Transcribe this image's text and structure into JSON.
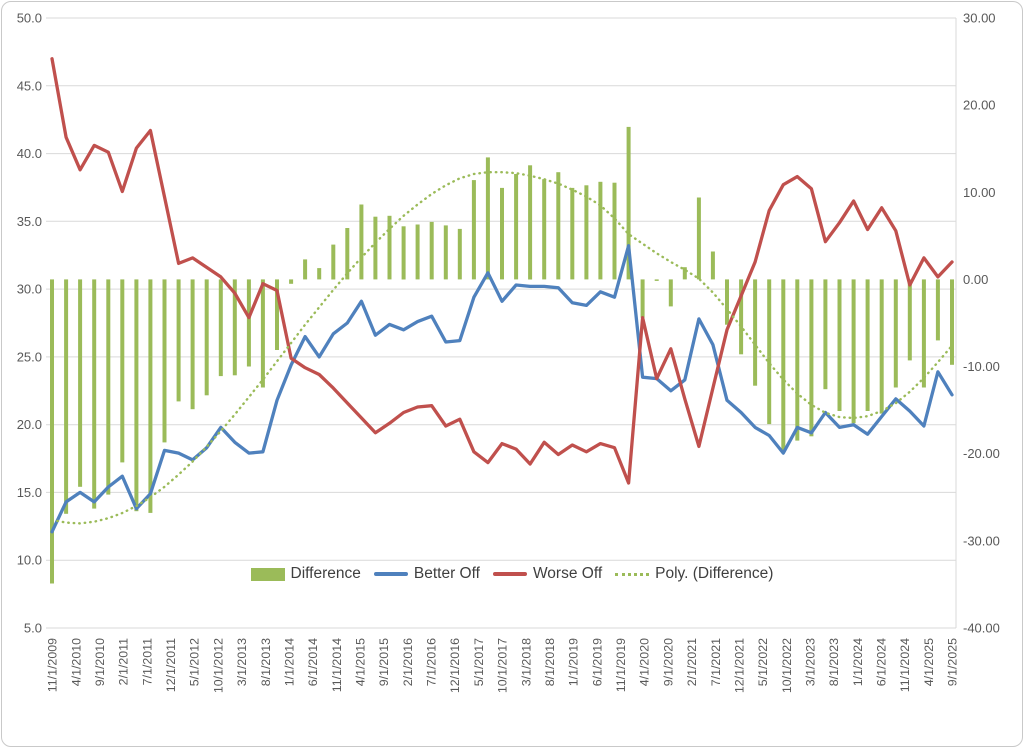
{
  "chart_data": {
    "type": "combo",
    "title": "",
    "xlabel": "",
    "ylabel_left": "",
    "ylabel_right": "",
    "grid": true,
    "x_tick_labels": [
      "11/1/2009",
      "4/1/2010",
      "9/1/2010",
      "2/1/2011",
      "7/1/2011",
      "12/1/2011",
      "5/1/2012",
      "10/1/2012",
      "3/1/2013",
      "8/1/2013",
      "1/1/2014",
      "6/1/2014",
      "11/1/2014",
      "4/1/2015",
      "9/1/2015",
      "2/1/2016",
      "7/1/2016",
      "12/1/2016",
      "5/1/2017",
      "10/1/2017",
      "3/1/2018",
      "8/1/2018",
      "1/1/2019",
      "6/1/2019",
      "11/1/2019",
      "4/1/2020",
      "9/1/2020",
      "2/1/2021",
      "7/1/2021",
      "12/1/2021",
      "5/1/2022",
      "10/1/2022",
      "3/1/2023",
      "8/1/2023",
      "1/1/2024",
      "6/1/2024",
      "11/1/2024",
      "4/1/2025",
      "9/1/2025"
    ],
    "left_axis": {
      "min": 5,
      "max": 50,
      "tick_labels": [
        "50.0",
        "45.0",
        "40.0",
        "35.0",
        "30.0",
        "25.0",
        "20.0",
        "15.0",
        "10.0",
        "5.0"
      ],
      "tick_values": [
        50,
        45,
        40,
        35,
        30,
        25,
        20,
        15,
        10,
        5
      ]
    },
    "right_axis": {
      "min": -40,
      "max": 30,
      "tick_labels": [
        "30.00",
        "20.00",
        "10.00",
        "0.00",
        "-10.00",
        "-20.00",
        "-30.00",
        "-40.00"
      ],
      "tick_values": [
        30,
        20,
        10,
        0,
        -10,
        -20,
        -30,
        -40
      ]
    },
    "legend": {
      "position": "bottom",
      "entries": [
        "Difference",
        "Better Off",
        "Worse Off",
        "Poly. (Difference)"
      ]
    },
    "series": [
      {
        "name": "Difference",
        "type": "bar",
        "axis": "right",
        "color": "#9BBB59",
        "values": [
          -34.9,
          -26.9,
          -23.8,
          -26.3,
          -24.7,
          -21.0,
          -26.6,
          -26.8,
          -18.7,
          -14.0,
          -14.9,
          -13.3,
          -11.1,
          -11.0,
          -10.0,
          -12.4,
          -8.1,
          -0.5,
          2.3,
          1.3,
          4.0,
          5.9,
          8.6,
          7.2,
          7.3,
          6.1,
          6.3,
          6.6,
          6.2,
          5.8,
          11.4,
          14.0,
          10.5,
          12.1,
          13.1,
          11.5,
          12.3,
          10.5,
          10.8,
          11.2,
          11.1,
          17.5,
          -4.4,
          0.0,
          -3.1,
          1.4,
          9.4,
          3.2,
          -5.2,
          -8.6,
          -12.2,
          -16.6,
          -19.8,
          -18.5,
          -18.0,
          -12.6,
          -15.1,
          -16.5,
          -15.1,
          -15.4,
          -12.4,
          -9.3,
          -12.4,
          -7.0,
          -9.8
        ]
      },
      {
        "name": "Better Off",
        "type": "line",
        "axis": "left",
        "color": "#4F81BD",
        "values": [
          12.1,
          14.3,
          15.0,
          14.3,
          15.4,
          16.2,
          13.8,
          14.9,
          18.1,
          17.9,
          17.4,
          18.3,
          19.8,
          18.7,
          17.9,
          18.0,
          21.8,
          24.4,
          26.5,
          25.0,
          26.7,
          27.5,
          29.1,
          26.6,
          27.4,
          27.0,
          27.6,
          28.0,
          26.1,
          26.2,
          29.4,
          31.2,
          29.1,
          30.3,
          30.2,
          30.2,
          30.1,
          29.0,
          28.8,
          29.8,
          29.4,
          33.2,
          23.5,
          23.4,
          22.5,
          23.3,
          27.8,
          25.9,
          21.8,
          20.9,
          19.8,
          19.2,
          17.9,
          19.8,
          19.4,
          20.9,
          19.8,
          20.0,
          19.3,
          20.6,
          21.9,
          21.0,
          19.9,
          23.9,
          22.2
        ]
      },
      {
        "name": "Worse Off",
        "type": "line",
        "axis": "left",
        "color": "#C0504D",
        "values": [
          47.0,
          41.2,
          38.8,
          40.6,
          40.1,
          37.2,
          40.4,
          41.7,
          36.8,
          31.9,
          32.3,
          31.6,
          30.9,
          29.7,
          27.9,
          30.4,
          29.9,
          24.9,
          24.2,
          23.7,
          22.7,
          21.6,
          20.5,
          19.4,
          20.1,
          20.9,
          21.3,
          21.4,
          19.9,
          20.4,
          18.0,
          17.2,
          18.6,
          18.2,
          17.1,
          18.7,
          17.8,
          18.5,
          18.0,
          18.6,
          18.3,
          15.7,
          27.9,
          23.4,
          25.6,
          21.9,
          18.4,
          22.7,
          27.0,
          29.5,
          32.0,
          35.8,
          37.7,
          38.3,
          37.4,
          33.5,
          34.9,
          36.5,
          34.4,
          36.0,
          34.3,
          30.3,
          32.3,
          30.9,
          32.0
        ]
      },
      {
        "name": "Poly. (Difference)",
        "type": "dotted-trendline",
        "axis": "right",
        "color": "#9BBB59",
        "values": [
          -27.6,
          -27.9,
          -28.0,
          -27.8,
          -27.4,
          -26.8,
          -26.0,
          -25.0,
          -23.8,
          -22.4,
          -20.9,
          -19.2,
          -17.4,
          -15.5,
          -13.5,
          -11.5,
          -9.4,
          -7.3,
          -5.2,
          -3.2,
          -1.2,
          0.7,
          2.5,
          4.2,
          5.8,
          7.3,
          8.6,
          9.8,
          10.8,
          11.6,
          12.1,
          12.3,
          12.3,
          12.2,
          11.9,
          11.5,
          11.0,
          10.3,
          9.5,
          8.5,
          7.0,
          5.2,
          4.1,
          3.0,
          2.0,
          1.1,
          0.1,
          -1.5,
          -3.4,
          -5.4,
          -7.5,
          -9.6,
          -11.5,
          -13.1,
          -14.4,
          -15.3,
          -15.8,
          -15.9,
          -15.7,
          -15.1,
          -14.2,
          -12.9,
          -11.3,
          -9.5,
          -7.6
        ]
      }
    ]
  },
  "colors": {
    "background": "#FFFFFF",
    "gridline": "#D9D9D9",
    "axis_text": "#595959",
    "legend_text": "#3F3F3F",
    "frame_border": "#C9C9C9",
    "bar_green": "#9BBB59",
    "line_blue": "#4F81BD",
    "line_red": "#C0504D"
  }
}
